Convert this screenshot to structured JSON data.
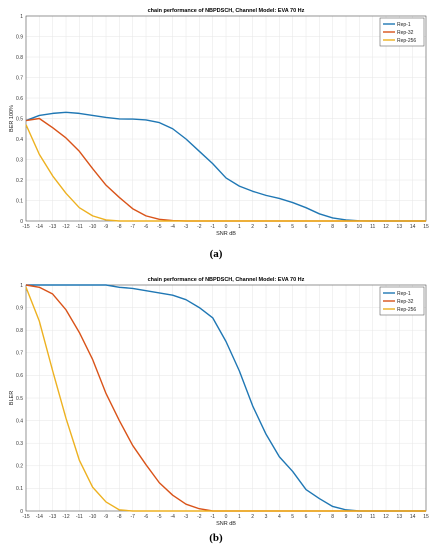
{
  "chart_data": [
    {
      "type": "line",
      "caption": "(a)",
      "title": "chain performance of NBPDSCH, Channel Model: EVA 70 Hz",
      "xlabel": "SNR dB",
      "ylabel": "BER 100%",
      "xlim": [
        -15,
        15
      ],
      "ylim": [
        0,
        1
      ],
      "xticks": [
        -15,
        -14,
        -13,
        -12,
        -11,
        -10,
        -9,
        -8,
        -7,
        -6,
        -5,
        -4,
        -3,
        -2,
        -1,
        0,
        1,
        2,
        3,
        4,
        5,
        6,
        7,
        8,
        9,
        10,
        11,
        12,
        13,
        14,
        15
      ],
      "yticks": [
        0,
        0.1,
        0.2,
        0.3,
        0.4,
        0.5,
        0.6,
        0.7,
        0.8,
        0.9,
        1
      ],
      "grid": true,
      "legend": "top-right",
      "x": [
        -15,
        -14,
        -13,
        -12,
        -11,
        -10,
        -9,
        -8,
        -7,
        -6,
        -5,
        -4,
        -3,
        -2,
        -1,
        0,
        1,
        2,
        3,
        4,
        5,
        6,
        7,
        8,
        9,
        10,
        11,
        12,
        13,
        14,
        15
      ],
      "series": [
        {
          "name": "Rep-1",
          "color": "#1f77b4",
          "values": [
            0.49,
            0.515,
            0.525,
            0.53,
            0.525,
            0.515,
            0.505,
            0.498,
            0.497,
            0.493,
            0.48,
            0.45,
            0.4,
            0.34,
            0.28,
            0.21,
            0.17,
            0.145,
            0.125,
            0.11,
            0.09,
            0.065,
            0.035,
            0.015,
            0.005,
            0.001,
            0,
            0,
            0,
            0,
            0
          ]
        },
        {
          "name": "Rep-32",
          "color": "#d95319",
          "values": [
            0.49,
            0.5,
            0.455,
            0.405,
            0.34,
            0.255,
            0.175,
            0.115,
            0.06,
            0.025,
            0.008,
            0.002,
            0,
            0,
            0,
            0,
            0,
            0,
            0,
            0,
            0,
            0,
            0,
            0,
            0,
            0,
            0,
            0,
            0,
            0,
            0
          ]
        },
        {
          "name": "Rep-256",
          "color": "#edb120",
          "values": [
            0.47,
            0.325,
            0.22,
            0.135,
            0.065,
            0.025,
            0.005,
            0,
            0,
            0,
            0,
            0,
            0,
            0,
            0,
            0,
            0,
            0,
            0,
            0,
            0,
            0,
            0,
            0,
            0,
            0,
            0,
            0,
            0,
            0,
            0
          ]
        }
      ]
    },
    {
      "type": "line",
      "caption": "(b)",
      "title": "chain performance of NBPDSCH, Channel Model: EVA 70 Hz",
      "xlabel": "SNR dB",
      "ylabel": "BLER",
      "xlim": [
        -15,
        15
      ],
      "ylim": [
        0,
        1
      ],
      "xticks": [
        -15,
        -14,
        -13,
        -12,
        -11,
        -10,
        -9,
        -8,
        -7,
        -6,
        -5,
        -4,
        -3,
        -2,
        -1,
        0,
        1,
        2,
        3,
        4,
        5,
        6,
        7,
        8,
        9,
        10,
        11,
        12,
        13,
        14,
        15
      ],
      "yticks": [
        0,
        0.1,
        0.2,
        0.3,
        0.4,
        0.5,
        0.6,
        0.7,
        0.8,
        0.9,
        1
      ],
      "grid": true,
      "legend": "top-right",
      "x": [
        -15,
        -14,
        -13,
        -12,
        -11,
        -10,
        -9,
        -8,
        -7,
        -6,
        -5,
        -4,
        -3,
        -2,
        -1,
        0,
        1,
        2,
        3,
        4,
        5,
        6,
        7,
        8,
        9,
        10,
        11,
        12,
        13,
        14,
        15
      ],
      "series": [
        {
          "name": "Rep-1",
          "color": "#1f77b4",
          "values": [
            1,
            1,
            1,
            1,
            1,
            1,
            1,
            0.99,
            0.985,
            0.975,
            0.965,
            0.955,
            0.935,
            0.9,
            0.855,
            0.75,
            0.62,
            0.465,
            0.34,
            0.24,
            0.175,
            0.095,
            0.055,
            0.02,
            0.005,
            0,
            0,
            0,
            0,
            0,
            0
          ]
        },
        {
          "name": "Rep-32",
          "color": "#d95319",
          "values": [
            1,
            0.99,
            0.96,
            0.89,
            0.79,
            0.67,
            0.52,
            0.4,
            0.29,
            0.205,
            0.125,
            0.07,
            0.03,
            0.01,
            0,
            0,
            0,
            0,
            0,
            0,
            0,
            0,
            0,
            0,
            0,
            0,
            0,
            0,
            0,
            0,
            0
          ]
        },
        {
          "name": "Rep-256",
          "color": "#edb120",
          "values": [
            0.99,
            0.84,
            0.62,
            0.41,
            0.225,
            0.105,
            0.04,
            0.005,
            0,
            0,
            0,
            0,
            0,
            0,
            0,
            0,
            0,
            0,
            0,
            0,
            0,
            0,
            0,
            0,
            0,
            0,
            0,
            0,
            0,
            0,
            0
          ]
        }
      ]
    }
  ]
}
